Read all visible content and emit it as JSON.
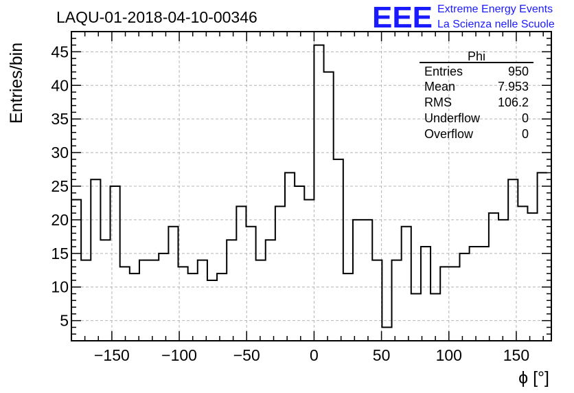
{
  "chart_data": {
    "type": "histogram",
    "title": "LAQU-01-2018-04-10-00346",
    "xlabel": "ϕ [°]",
    "ylabel": "Entries/bin",
    "xlim": [
      -180,
      176
    ],
    "ylim": [
      2,
      48
    ],
    "bin_width": 7.2,
    "x_start": -180,
    "bin_counts": [
      23,
      14,
      26,
      17,
      25,
      13,
      12,
      14,
      14,
      15,
      19,
      13,
      12,
      14,
      11,
      12,
      17,
      22,
      19,
      14,
      17,
      22,
      27,
      25,
      23,
      46,
      42,
      29,
      12,
      20,
      20,
      14,
      4,
      14,
      19,
      9,
      16,
      9,
      13,
      13,
      15,
      16,
      16,
      21,
      20,
      26,
      22,
      21,
      27
    ],
    "x_ticks": [
      -150,
      -100,
      -50,
      0,
      50,
      100,
      150
    ],
    "x_tick_labels": [
      "−150",
      "−100",
      "−50",
      "0",
      "50",
      "100",
      "150"
    ],
    "y_ticks": [
      5,
      10,
      15,
      20,
      25,
      30,
      35,
      40,
      45
    ],
    "y_tick_labels": [
      "5",
      "10",
      "15",
      "20",
      "25",
      "30",
      "35",
      "40",
      "45"
    ],
    "grid": true,
    "line_color": "#000000",
    "stats_box": {
      "name": "Phi",
      "rows": [
        {
          "label": "Entries",
          "value": "950"
        },
        {
          "label": "Mean",
          "value": "7.953"
        },
        {
          "label": "RMS",
          "value": "106.2"
        },
        {
          "label": "Underflow",
          "value": "0"
        },
        {
          "label": "Overflow",
          "value": "0"
        }
      ]
    }
  },
  "logo": {
    "letters": "EEE",
    "line1": "Extreme Energy Events",
    "line2": "La Scienza nelle Scuole",
    "color": "#1a1aff"
  }
}
